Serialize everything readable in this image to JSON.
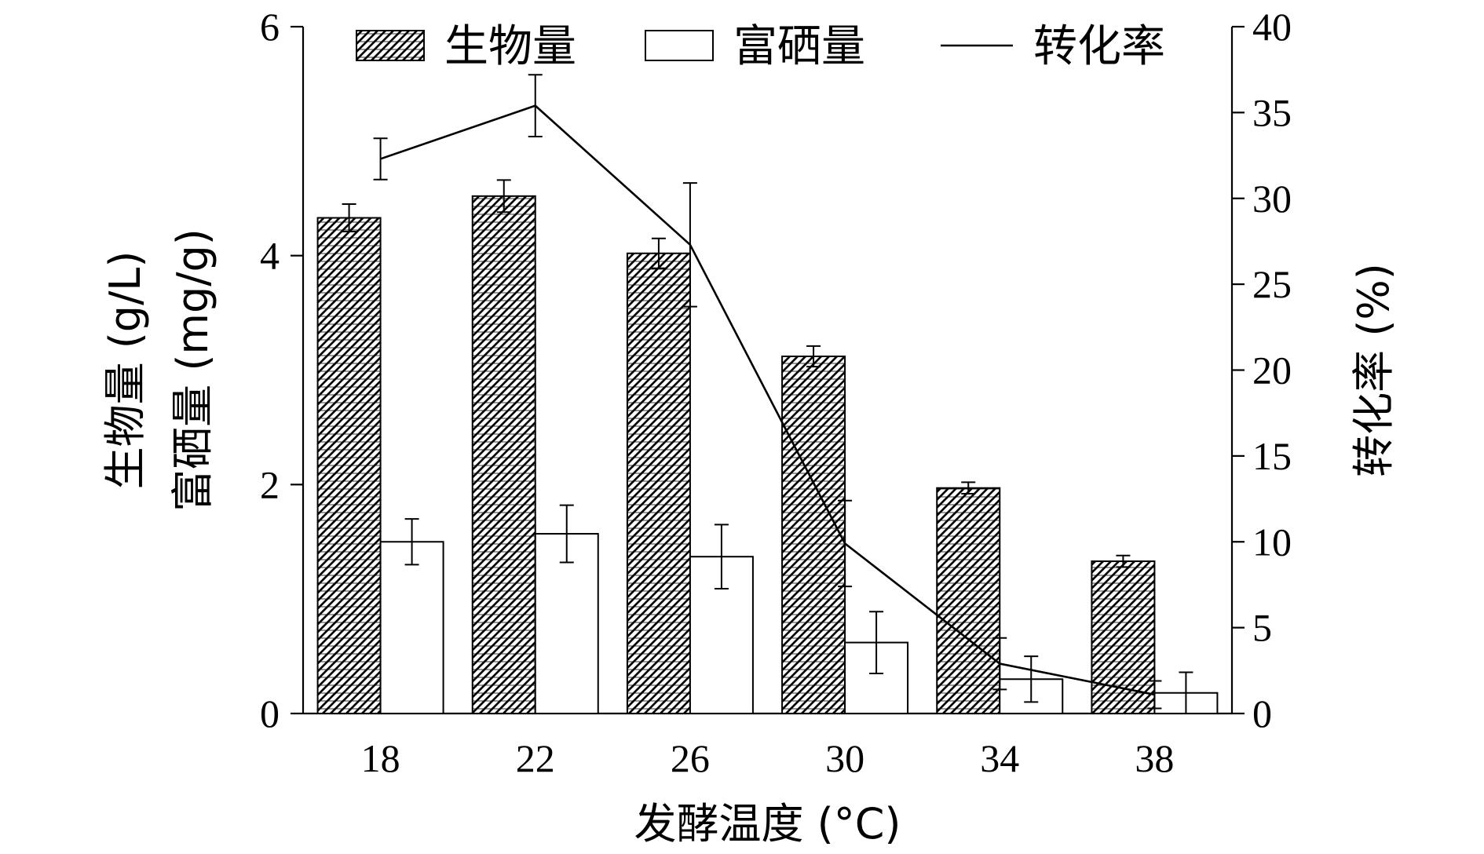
{
  "chart_data": {
    "type": "bar",
    "categories": [
      "18",
      "22",
      "26",
      "30",
      "34",
      "38"
    ],
    "xlabel": "发酵温度 (°C)",
    "ylabel_left_line1": "生物量 (g/L)",
    "ylabel_left_line2": "富硒量 (mg/g)",
    "ylabel_right": "转化率 (%)",
    "ylim_left": [
      0,
      6
    ],
    "yticks_left": [
      "0",
      "2",
      "4",
      "6"
    ],
    "ylim_right": [
      0,
      40
    ],
    "yticks_right": [
      "0",
      "5",
      "10",
      "15",
      "20",
      "25",
      "30",
      "35",
      "40"
    ],
    "series": [
      {
        "name": "生物量",
        "axis": "left",
        "kind": "bar",
        "pattern": "hatched",
        "values": [
          4.33,
          4.52,
          4.02,
          3.12,
          1.97,
          1.33
        ],
        "errors": [
          0.12,
          0.14,
          0.13,
          0.09,
          0.05,
          0.05
        ]
      },
      {
        "name": "富硒量",
        "axis": "left",
        "kind": "bar",
        "pattern": "hollow",
        "values": [
          1.5,
          1.57,
          1.37,
          0.62,
          0.3,
          0.18
        ],
        "errors": [
          0.2,
          0.25,
          0.28,
          0.27,
          0.2,
          0.18
        ]
      },
      {
        "name": "转化率",
        "axis": "right",
        "kind": "line",
        "values": [
          32.3,
          35.4,
          27.3,
          9.9,
          2.9,
          1.1
        ],
        "errors": [
          1.2,
          1.8,
          3.6,
          2.5,
          1.5,
          0.8
        ]
      }
    ],
    "legend_position": "top",
    "grid": false
  }
}
